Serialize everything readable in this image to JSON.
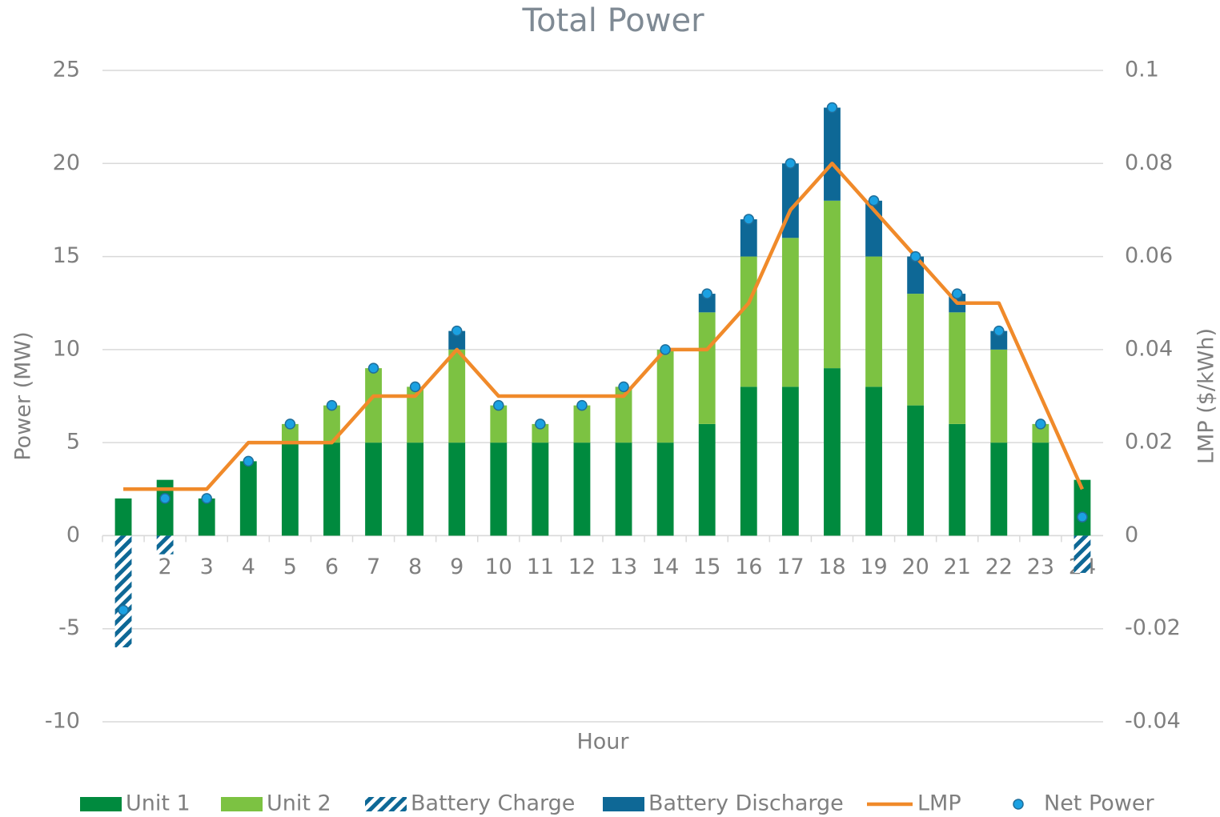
{
  "chart_data": {
    "type": "bar",
    "title": "Total Power",
    "x_label": "Hour",
    "y_label": "Power (MW)",
    "y2_label": "LMP ($/kWh)",
    "categories": [
      "1",
      "2",
      "3",
      "4",
      "5",
      "6",
      "7",
      "8",
      "9",
      "10",
      "11",
      "12",
      "13",
      "14",
      "15",
      "16",
      "17",
      "18",
      "19",
      "20",
      "21",
      "22",
      "23",
      "24"
    ],
    "series": [
      {
        "name": "Unit 1",
        "type": "bar",
        "color": "#008a3e",
        "values": [
          2,
          3,
          2,
          4,
          5,
          5,
          5,
          5,
          5,
          5,
          5,
          5,
          5,
          5,
          6,
          8,
          8,
          9,
          8,
          7,
          6,
          5,
          5,
          3
        ]
      },
      {
        "name": "Unit 2",
        "type": "bar",
        "color": "#7cc242",
        "values": [
          0,
          0,
          0,
          0,
          1,
          2,
          4,
          3,
          5,
          2,
          1,
          2,
          3,
          5,
          6,
          7,
          8,
          9,
          7,
          6,
          6,
          5,
          1,
          0
        ]
      },
      {
        "name": "Battery Charge",
        "type": "bar",
        "color": "#0e6896",
        "hatch": true,
        "values": [
          -6,
          -1,
          0,
          0,
          0,
          0,
          0,
          0,
          0,
          0,
          0,
          0,
          0,
          0,
          0,
          0,
          0,
          0,
          0,
          0,
          0,
          0,
          0,
          -2
        ]
      },
      {
        "name": "Battery Discharge",
        "type": "bar",
        "color": "#0e6896",
        "values": [
          0,
          0,
          0,
          0,
          0,
          0,
          0,
          0,
          1,
          0,
          0,
          0,
          0,
          0,
          1,
          2,
          4,
          5,
          3,
          2,
          1,
          1,
          0,
          0
        ]
      },
      {
        "name": "LMP",
        "type": "line",
        "axis": "y2",
        "color": "#f08a2a",
        "values": [
          0.01,
          0.01,
          0.01,
          0.02,
          0.02,
          0.02,
          0.03,
          0.03,
          0.04,
          0.03,
          0.03,
          0.03,
          0.03,
          0.04,
          0.04,
          0.05,
          0.07,
          0.08,
          0.07,
          0.06,
          0.05,
          0.05,
          0.03,
          0.01
        ]
      },
      {
        "name": "Net Power",
        "type": "scatter",
        "color": "#1ba1e2",
        "values": [
          -4,
          2,
          2,
          4,
          6,
          7,
          9,
          8,
          11,
          7,
          6,
          7,
          8,
          10,
          13,
          17,
          20,
          23,
          18,
          15,
          13,
          11,
          6,
          1
        ]
      }
    ],
    "ylim": [
      -10,
      25
    ],
    "yticks": [
      -10,
      -5,
      0,
      5,
      10,
      15,
      20,
      25
    ],
    "y2lim": [
      -0.04,
      0.1
    ],
    "y2ticks": [
      -0.04,
      -0.02,
      0,
      0.02,
      0.04,
      0.06,
      0.08,
      0.1
    ],
    "grid": true,
    "legend": "bottom"
  }
}
